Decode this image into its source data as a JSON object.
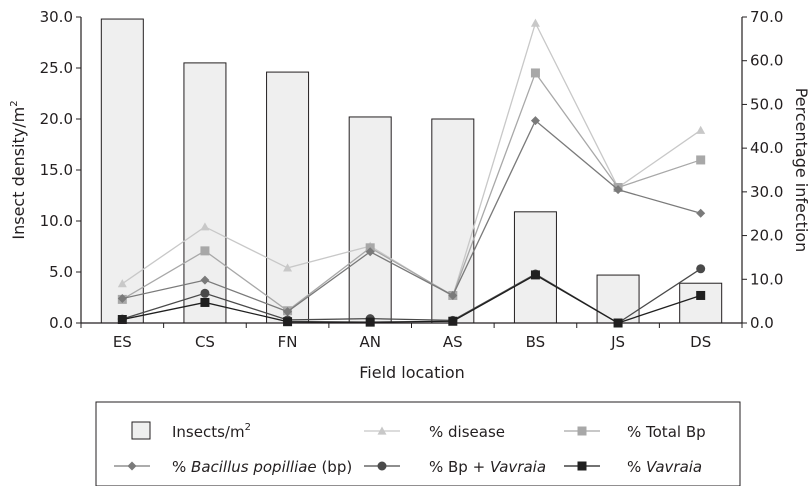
{
  "chart_data": {
    "type": "bar",
    "categories": [
      "ES",
      "CS",
      "FN",
      "AN",
      "AS",
      "BS",
      "JS",
      "DS"
    ],
    "xlabel": "Field location",
    "ylabel_left": "Insect density/m",
    "ylabel_left_sup": "2",
    "ylabel_right": "Percentage infection",
    "ylim_left": [
      0,
      30
    ],
    "ylim_right": [
      0,
      70
    ],
    "yticks_left": [
      "0.0",
      "5.0",
      "10.0",
      "15.0",
      "20.0",
      "25.0",
      "30.0"
    ],
    "yticks_right": [
      "0.0",
      "10.0",
      "20.0",
      "30.0",
      "40.0",
      "50.0",
      "60.0",
      "70.0"
    ],
    "bars": {
      "name": "Insects/m",
      "name_sup": "2",
      "axis": "left",
      "color": "#efefef",
      "values": [
        29.8,
        25.5,
        24.6,
        20.2,
        20.0,
        10.9,
        4.7,
        3.9
      ]
    },
    "series": [
      {
        "name": "% disease",
        "marker": "triangle",
        "color": "#c8c8c8",
        "axis": "right",
        "values": [
          9.0,
          22.0,
          12.6,
          17.6,
          6.1,
          68.6,
          31.0,
          44.1
        ]
      },
      {
        "name": "% Total Bp",
        "marker": "square",
        "color": "#a8a8a8",
        "axis": "right",
        "values": [
          5.4,
          16.5,
          2.8,
          17.2,
          6.3,
          57.2,
          31.0,
          37.3
        ]
      },
      {
        "name_parts": [
          {
            "text": "% ",
            "italic": false
          },
          {
            "text": "Bacillus popilliae",
            "italic": true
          },
          {
            "text": " (bp)",
            "italic": false
          }
        ],
        "marker": "diamond",
        "color": "#7a7a7a",
        "axis": "right",
        "values": [
          5.6,
          9.8,
          2.6,
          16.3,
          6.3,
          46.3,
          30.5,
          25.1
        ]
      },
      {
        "name_parts": [
          {
            "text": "% Bp + ",
            "italic": false
          },
          {
            "text": "Vavraia",
            "italic": true
          }
        ],
        "marker": "circle",
        "color": "#4a4a4a",
        "axis": "right",
        "values": [
          0.9,
          6.8,
          0.7,
          1.0,
          0.6,
          11.2,
          0.0,
          12.4
        ]
      },
      {
        "name_parts": [
          {
            "text": "% ",
            "italic": false
          },
          {
            "text": "Vavraia",
            "italic": true
          }
        ],
        "marker": "square",
        "color": "#1f1f1f",
        "axis": "right",
        "values": [
          0.8,
          4.7,
          0.3,
          0.2,
          0.4,
          11.0,
          0.0,
          6.3
        ]
      }
    ],
    "legend_placement": "bottom"
  }
}
